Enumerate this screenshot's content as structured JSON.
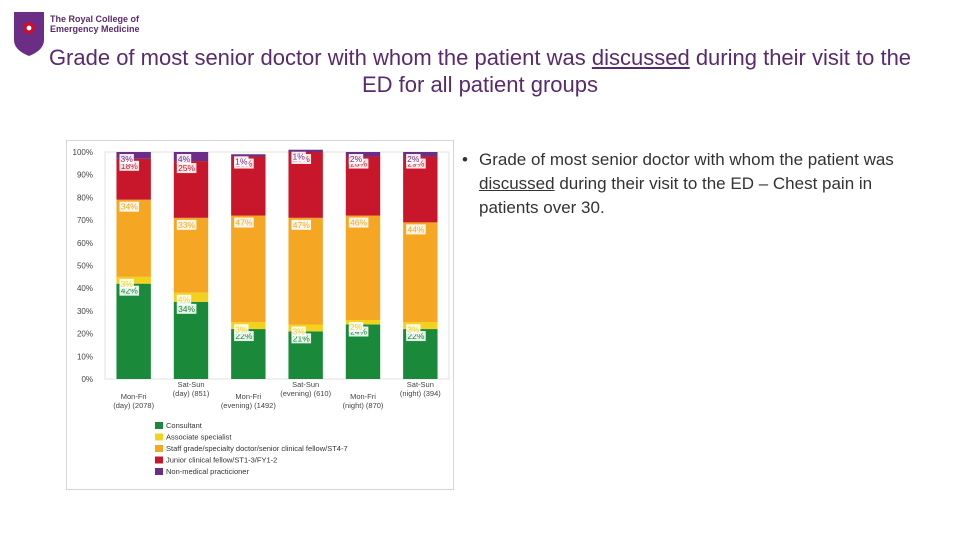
{
  "logo": {
    "text": "The Royal College of\nEmergency Medicine",
    "colors": {
      "purple": "#6b2d86",
      "red": "#c8102e"
    }
  },
  "title": {
    "part1": "Grade of most senior doctor with whom the patient was ",
    "underlined": "discussed",
    "part2": " during their visit to the ED for all patient groups"
  },
  "bullet": {
    "part1": "Grade of most senior doctor with whom the patient was ",
    "underlined": "discussed",
    "part2": " during their visit to the ED – Chest pain in patients over 30."
  },
  "chart_data": {
    "type": "bar",
    "stacked": true,
    "categories": [
      [
        "Mon-Fri",
        "(day) (2078)"
      ],
      [
        "Sat-Sun",
        "(day) (851)"
      ],
      [
        "Mon-Fri",
        "(evening) (1492)"
      ],
      [
        "Sat-Sun",
        "(evening) (610)"
      ],
      [
        "Mon-Fri",
        "(night) (870)"
      ],
      [
        "Sat-Sun",
        "(night) (394)"
      ]
    ],
    "ylim": [
      0,
      100
    ],
    "y_ticks": [
      "0%",
      "10%",
      "20%",
      "30%",
      "40%",
      "50%",
      "60%",
      "70%",
      "80%",
      "90%",
      "100%"
    ],
    "grid": false,
    "legend_position": "bottom",
    "series": [
      {
        "name": "Consultant",
        "color": "#1a8a3a",
        "values": [
          42,
          34,
          22,
          21,
          24,
          22
        ]
      },
      {
        "name": "Associate specialist",
        "color": "#f2d21c",
        "values": [
          3,
          4,
          3,
          3,
          2,
          3
        ]
      },
      {
        "name": "Staff grade/specialty doctor/senior clinical fellow/ST4-7",
        "color": "#f5a623",
        "values": [
          34,
          33,
          47,
          47,
          46,
          44
        ]
      },
      {
        "name": "Junior clinical fellow/ST1-3/FY1-2",
        "color": "#c8172b",
        "values": [
          18,
          25,
          26,
          29,
          26,
          29
        ]
      },
      {
        "name": "Non-medical practicioner",
        "color": "#6b2d86",
        "values": [
          3,
          4,
          1,
          1,
          2,
          2
        ]
      }
    ]
  }
}
